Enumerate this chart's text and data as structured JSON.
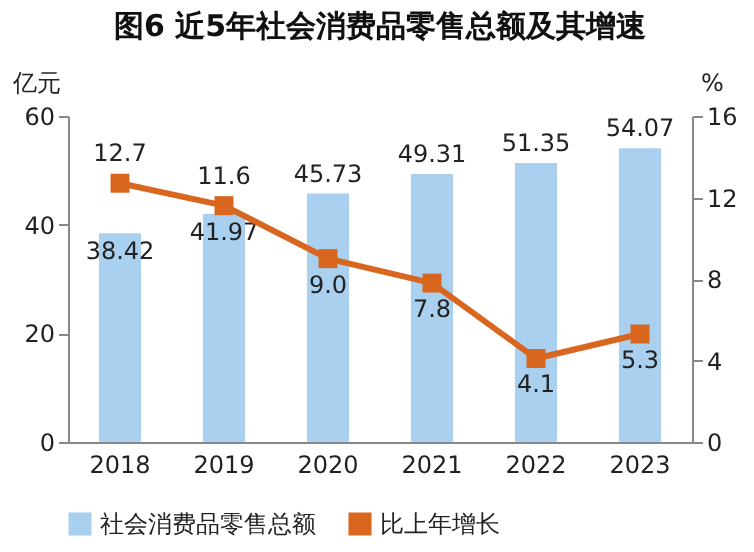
{
  "chart_data": {
    "type": "bar",
    "title": "图6 近5年社会消费品零售总额及其增速",
    "categories": [
      "2018",
      "2019",
      "2020",
      "2021",
      "2022",
      "2023"
    ],
    "ylabel": "亿元",
    "y2label": "%",
    "ylim": [
      0,
      60
    ],
    "yticks": [
      0,
      20,
      40,
      60
    ],
    "y2lim": [
      0,
      16
    ],
    "y2ticks": [
      0,
      4,
      8,
      12,
      16
    ],
    "legend": "bottom",
    "marker": "square",
    "line_style": "solid",
    "series": [
      {
        "name": "社会消费品零售总额",
        "color": "#a9d0ee",
        "values": [
          38.42,
          41.97,
          45.73,
          49.31,
          51.35,
          54.07
        ],
        "value_labels": [
          "38.42",
          "41.97",
          "45.73",
          "49.31",
          "51.35",
          "54.07"
        ]
      },
      {
        "name": "比上年增长",
        "type": "line",
        "axis": "y2",
        "color": "#d9661f",
        "values": [
          12.7,
          11.6,
          9.0,
          7.8,
          4.1,
          5.3
        ],
        "value_labels": [
          "12.7",
          "11.6",
          "9.0",
          "7.8",
          "4.1",
          "5.3"
        ]
      }
    ]
  }
}
